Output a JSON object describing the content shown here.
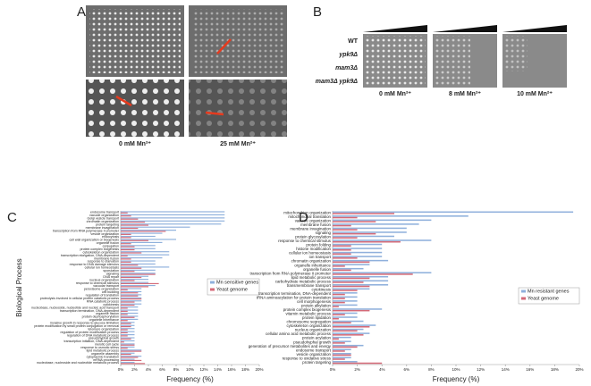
{
  "panel_a": {
    "label": "A",
    "conditions": [
      "0 mM Mn²⁺",
      "25 mM Mn²⁺"
    ]
  },
  "panel_b": {
    "label": "B",
    "strains": [
      "WT",
      "ypk9Δ",
      "mam3Δ",
      "mam3Δ ypk9Δ"
    ],
    "conditions": [
      "0 mM Mn²⁺",
      "8 mM Mn²⁺",
      "10 mM Mn²⁺"
    ]
  },
  "chart_data": [
    {
      "type": "barh",
      "panel_label": "C",
      "ylabel": "Biological Process",
      "xlabel": "Frequency (%)",
      "legend": "right",
      "categories": [
        "endosome transport",
        "vacuole organization",
        "Golgi vesicle transport",
        "chromatin organization",
        "protein targeting",
        "membrane invagination",
        "transcription from RNA polymerase II promoter",
        "vesicle organization",
        "endocytosis",
        "cell wall organization or biogenesis",
        "organelle fusion",
        "conjugation",
        "protein complex biogenesis",
        "cytoskeleton organization",
        "transcription elongation, DNA-dependent",
        "membrane fusion",
        "response to starvation",
        "response to DNA damage stimulus",
        "cellular ion homeostasis",
        "sporulation",
        "signaling",
        "DNA repair",
        "nucleus organization",
        "response to chemical stimulus",
        "vacuolar transport",
        "peroxisome organization",
        "cell budding",
        "regulation of translation",
        "proteolysis involved in cellular protein catabolic process",
        "RNA catabolic process",
        "cytokinesis",
        "nucleobase, nucleoside, nucleotide and nucleic acid transport",
        "transcription termination, DNA-dependent",
        "organelle fission",
        "protein dephosphorylation",
        "organelle inheritance",
        "invasive growth in response to glucose limitation",
        "protein modification by small protein conjugation or removal",
        "telomere organization",
        "regulation of protein modification process",
        "regulation of DNA metabolic process",
        "pseudohyphal growth",
        "transcription initiation, DNA-dependent",
        "meiotic cell cycle",
        "response to osmotic stress",
        "lipid metabolic process",
        "organelle assembly",
        "cytoplasmic translation",
        "mRNA processing",
        "nucleobase, nucleoside and nucleotide metabolic process"
      ],
      "series": [
        {
          "name": "Mn sensitive genes",
          "color": "#8fb0dc",
          "values": [
            15,
            15,
            15,
            15,
            14.5,
            10,
            8,
            6,
            5,
            8,
            6,
            5,
            5,
            7,
            7,
            6,
            5,
            5,
            7,
            5,
            5,
            4,
            4,
            4,
            5,
            3,
            3,
            3,
            3,
            3,
            3,
            2.5,
            2.5,
            2.5,
            2.5,
            2.5,
            2,
            2,
            2,
            2,
            2,
            2,
            2,
            2,
            2,
            3,
            2,
            3,
            2,
            2
          ]
        },
        {
          "name": "Yeast genome",
          "color": "#d46a78",
          "values": [
            1,
            1.5,
            2.5,
            3.5,
            4,
            2.5,
            6.5,
            1.5,
            1.5,
            4,
            1.5,
            2,
            2,
            3,
            1,
            1.5,
            1.5,
            2.5,
            3,
            2,
            5,
            3,
            2,
            5.5,
            4,
            1,
            2.5,
            2.5,
            3,
            2,
            2,
            1,
            1,
            1,
            2,
            1,
            1.5,
            1.5,
            1,
            1,
            1,
            1.5,
            0.5,
            2,
            1,
            3,
            1.5,
            2.5,
            3,
            3.5
          ]
        }
      ],
      "xlim": [
        0,
        20
      ],
      "xticks": [
        {
          "value": 0,
          "label": "0%"
        },
        {
          "value": 2,
          "label": "2%"
        },
        {
          "value": 4,
          "label": "4%"
        },
        {
          "value": 6,
          "label": "6%"
        },
        {
          "value": 8,
          "label": "8%"
        },
        {
          "value": 10,
          "label": "10%"
        },
        {
          "value": 12,
          "label": "12%"
        },
        {
          "value": 14,
          "label": "14%"
        },
        {
          "value": 16,
          "label": "16%"
        },
        {
          "value": 18,
          "label": "18%"
        },
        {
          "value": 20,
          "label": "20%"
        }
      ]
    },
    {
      "type": "barh",
      "panel_label": "D",
      "xlabel": "Frequency (%)",
      "legend": "right",
      "categories": [
        "mitochondrion organization",
        "mitochondrial translation",
        "vacuole organization",
        "membrane fusion",
        "membrane invagination",
        "signaling",
        "protein glycosylation",
        "response to chemical stimulus",
        "protein folding",
        "histone modification",
        "cellular ion homeostasis",
        "ion transport",
        "chromatin organization",
        "organelle inheritance",
        "organelle fusion",
        "transcription from RNA polymerase II promoter",
        "lipid metabolic process",
        "carbohydrate metabolic process",
        "transmembrane transport",
        "cytokinesis",
        "transcription termination, DNA-dependent",
        "tRNA aminoacylation for protein translation",
        "cell morphogenesis",
        "protein alkylation",
        "protein complex biogenesis",
        "vitamin metabolic process",
        "protein lipidation",
        "chromosome segregation",
        "cytoskeleton organization",
        "nucleus organization",
        "cellular amino acid metabolic process",
        "protein acylation",
        "pseudohyphal growth",
        "generation of precursor metabolites and energy",
        "endosome transport",
        "vesicle organization",
        "response to oxidative stress",
        "protein targeting"
      ],
      "series": [
        {
          "name": "Mn resistant genes",
          "color": "#8fb0dc",
          "values": [
            19.5,
            11,
            8,
            7,
            6,
            6,
            5,
            8,
            4,
            4,
            4,
            4,
            4.5,
            3,
            2.5,
            8,
            4.5,
            4.5,
            4.5,
            3,
            2,
            2,
            2,
            2,
            4,
            2,
            2,
            2.5,
            3.5,
            2.5,
            3,
            1.5,
            1.5,
            2.5,
            1.5,
            1.5,
            1.5,
            2
          ]
        },
        {
          "name": "Yeast genome",
          "color": "#d46a78",
          "values": [
            5,
            2,
            3.5,
            1.5,
            2,
            3.5,
            2,
            5.5,
            1.5,
            1.5,
            1.5,
            2,
            3,
            1,
            1.5,
            6.5,
            3,
            2.5,
            3,
            2,
            1,
            1,
            1,
            0.5,
            3,
            1,
            0.5,
            1.5,
            3,
            2,
            2.5,
            0.5,
            1,
            2,
            1,
            1.5,
            1,
            4
          ]
        }
      ],
      "xlim": [
        0,
        20
      ],
      "xticks": [
        {
          "value": 0,
          "label": "0%"
        },
        {
          "value": 2,
          "label": "2%"
        },
        {
          "value": 4,
          "label": "4%"
        },
        {
          "value": 6,
          "label": "6%"
        },
        {
          "value": 8,
          "label": "8%"
        },
        {
          "value": 10,
          "label": "10%"
        },
        {
          "value": 12,
          "label": "12%"
        },
        {
          "value": 14,
          "label": "14%"
        },
        {
          "value": 16,
          "label": "16%"
        },
        {
          "value": 18,
          "label": "18%"
        },
        {
          "value": 20,
          "label": "20%"
        }
      ]
    }
  ]
}
